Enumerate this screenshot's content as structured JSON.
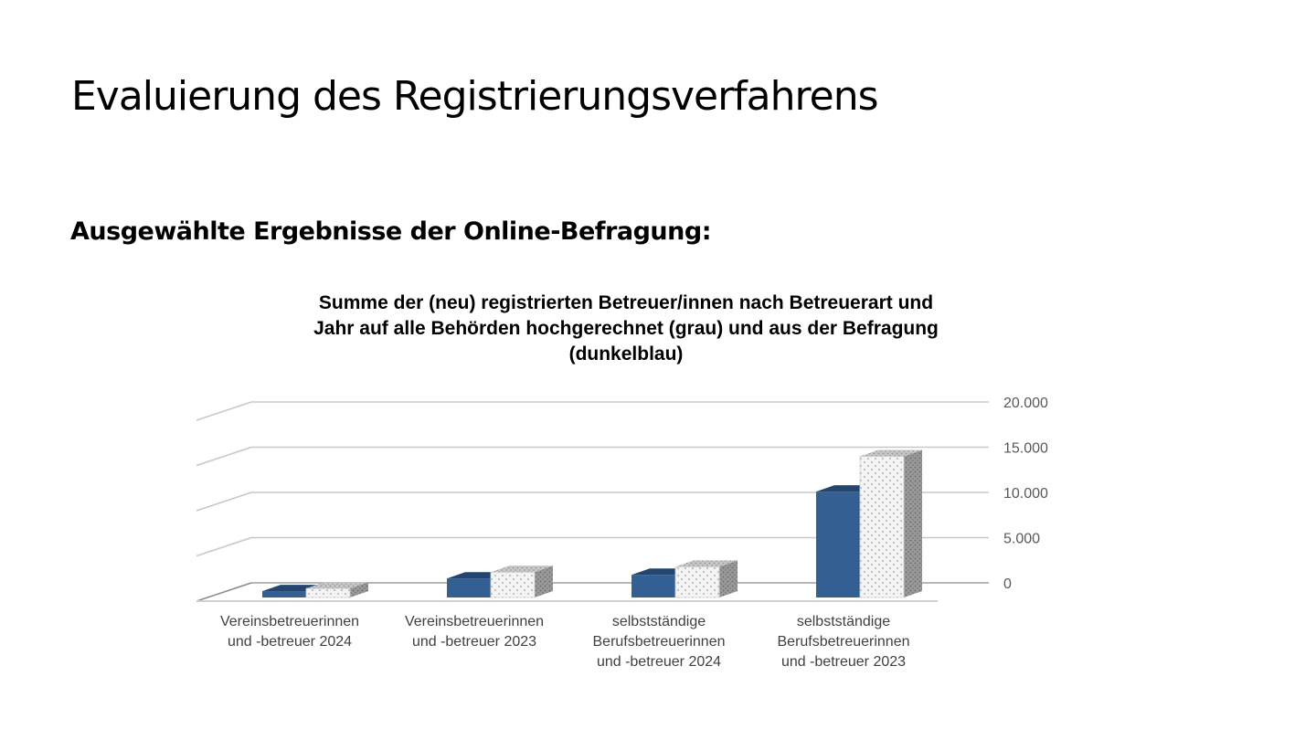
{
  "slide": {
    "title": "Evaluierung des Registrierungsverfahrens",
    "subtitle": "Ausgewählte Ergebnisse der Online-Befragung:"
  },
  "chart_data": {
    "type": "bar",
    "style": "3d-clustered-column",
    "title_lines": [
      "Summe der (neu) registrierten Betreuer/innen nach Betreuerart und",
      "Jahr auf alle Behörden hochgerechnet (grau) und aus der Befragung",
      "(dunkelblau)"
    ],
    "categories": [
      [
        "Vereinsbetreuerinnen",
        "und -betreuer 2024"
      ],
      [
        "Vereinsbetreuerinnen",
        "und -betreuer 2023"
      ],
      [
        "selbstständige",
        "Berufsbetreuerinnen",
        "und -betreuer 2024"
      ],
      [
        "selbstständige",
        "Berufsbetreuerinnen",
        "und -betreuer 2023"
      ]
    ],
    "series": [
      {
        "values": [
          700,
          2100,
          2500,
          11700
        ],
        "color": "#345f93"
      },
      {
        "values": [
          1000,
          2800,
          3400,
          15600
        ],
        "color": "#d9d9d9",
        "pattern": "dotted-grey"
      }
    ],
    "y_axis": {
      "position": "right",
      "ylim": [
        0,
        20000
      ],
      "ticks": [
        0,
        5000,
        10000,
        15000,
        20000
      ],
      "tick_labels": [
        "0",
        "5.000",
        "10.000",
        "15.000",
        "20.000"
      ]
    },
    "gridlines": true,
    "legend": "none"
  }
}
